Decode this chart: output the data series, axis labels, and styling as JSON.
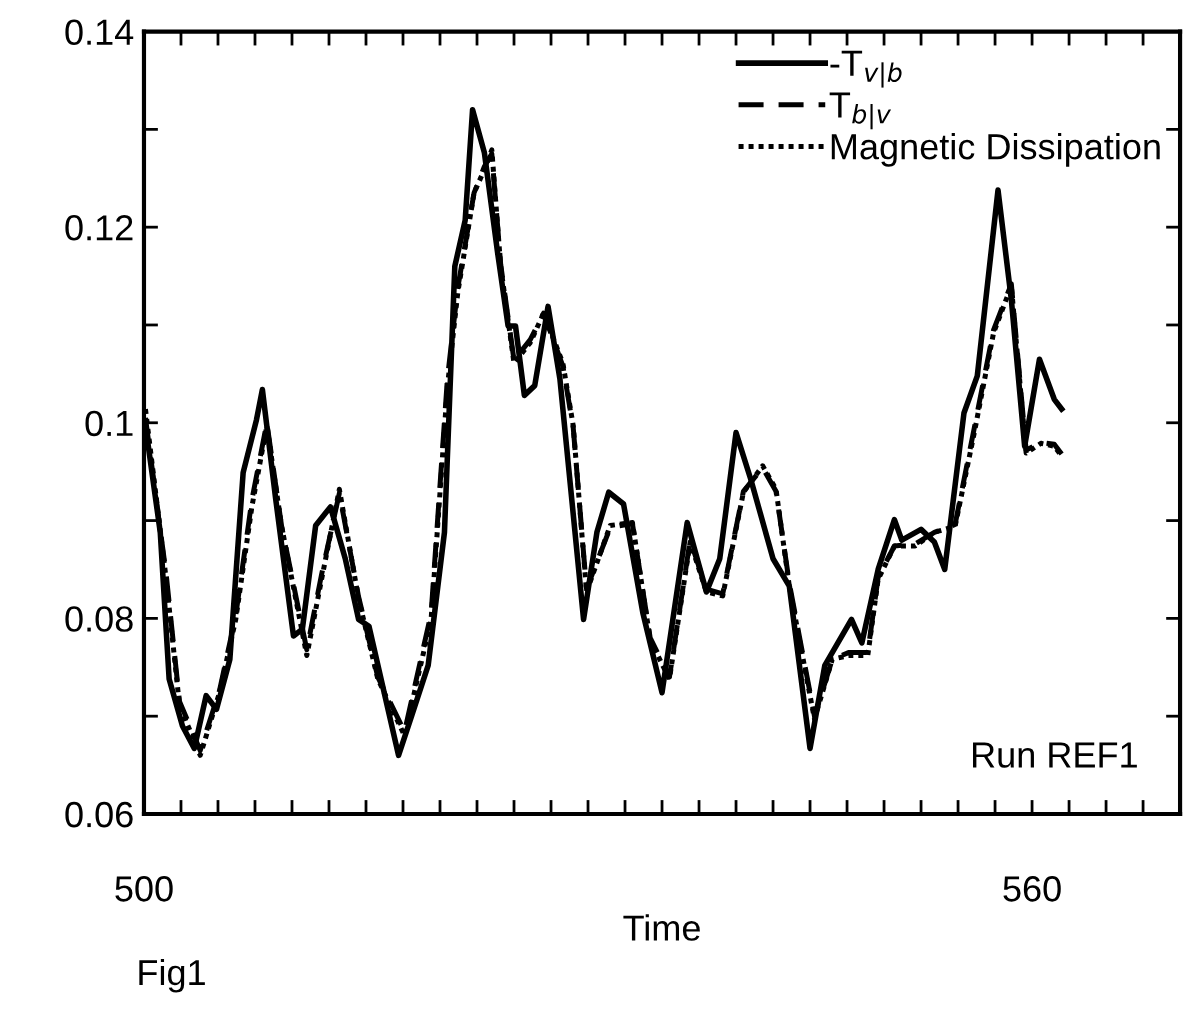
{
  "chart_data": {
    "type": "line",
    "xlabel": "Time",
    "xlim": [
      500,
      570
    ],
    "xticks": [
      500,
      {
        "value": 502.5,
        "label": null
      },
      {
        "value": 505,
        "label": null
      },
      {
        "value": 507.5,
        "label": null
      },
      {
        "value": 510,
        "label": null
      },
      {
        "value": 512.5,
        "label": null
      },
      {
        "value": 515,
        "label": null
      },
      {
        "value": 517.5,
        "label": null
      },
      {
        "value": 520,
        "label": null
      },
      {
        "value": 522.5,
        "label": null
      },
      {
        "value": 525,
        "label": null
      },
      {
        "value": 527.5,
        "label": null
      },
      {
        "value": 530,
        "label": null
      },
      {
        "value": 532.5,
        "label": null
      },
      {
        "value": 535,
        "label": null
      },
      {
        "value": 537.5,
        "label": null
      },
      {
        "value": 540,
        "label": null
      },
      {
        "value": 542.5,
        "label": null
      },
      {
        "value": 545,
        "label": null
      },
      {
        "value": 547.5,
        "label": null
      },
      {
        "value": 550,
        "label": null
      },
      {
        "value": 552.5,
        "label": null
      },
      {
        "value": 555,
        "label": null
      },
      {
        "value": 557.5,
        "label": null
      },
      560,
      {
        "value": 562.5,
        "label": null
      },
      {
        "value": 565,
        "label": null
      },
      {
        "value": 567.5,
        "label": null
      },
      {
        "value": 570,
        "label": null
      }
    ],
    "ylim": [
      0.06,
      0.14
    ],
    "yticks": [
      0.06,
      {
        "value": 0.07,
        "label": null
      },
      0.08,
      {
        "value": 0.09,
        "label": null
      },
      0.1,
      {
        "value": 0.11,
        "label": null
      },
      0.12,
      {
        "value": 0.13,
        "label": null
      },
      0.14
    ],
    "grid": false,
    "legend": "top right",
    "annotations": [
      "Run REF1",
      "Fig1"
    ],
    "series": [
      {
        "name": "-T$_{v|b}$",
        "color": "#000000",
        "line_style": "solid",
        "x": [
          500.1,
          501.1,
          501.7,
          502.6,
          503.4,
          504.2,
          504.9,
          505.8,
          506.7,
          507.6,
          508.0,
          508.9,
          510.1,
          510.7,
          511.6,
          512.6,
          513.6,
          514.5,
          515.2,
          517.2,
          518.1,
          519.2,
          520.3,
          521.0,
          521.7,
          522.2,
          523.0,
          523.9,
          524.6,
          525.1,
          525.7,
          526.4,
          527.3,
          528.1,
          529.7,
          530.6,
          531.4,
          532.4,
          533.7,
          535.0,
          536.7,
          538.0,
          538.9,
          540.0,
          541.0,
          542.5,
          543.6,
          545.0,
          546.0,
          547.8,
          548.5,
          549.6,
          550.7,
          551.2,
          552.5,
          553.4,
          554.1,
          555.4,
          556.3,
          557.7,
          558.6,
          559.5,
          560.5,
          561.5,
          562.0
        ],
        "values": [
          0.0997,
          0.0888,
          0.0738,
          0.069,
          0.0667,
          0.0721,
          0.0707,
          0.0758,
          0.0949,
          0.1003,
          0.1034,
          0.0922,
          0.0782,
          0.0789,
          0.0895,
          0.0914,
          0.0861,
          0.0799,
          0.0792,
          0.066,
          0.0701,
          0.0752,
          0.0888,
          0.116,
          0.1207,
          0.132,
          0.1276,
          0.1173,
          0.1099,
          0.1099,
          0.1028,
          0.1038,
          0.1119,
          0.1045,
          0.0799,
          0.0888,
          0.0929,
          0.0917,
          0.0806,
          0.0724,
          0.0898,
          0.0827,
          0.0861,
          0.099,
          0.0942,
          0.0861,
          0.0833,
          0.0667,
          0.0752,
          0.0799,
          0.0775,
          0.085,
          0.0901,
          0.088,
          0.0891,
          0.0878,
          0.085,
          0.101,
          0.1048,
          0.1238,
          0.1126,
          0.0976,
          0.1065,
          0.1024,
          0.1014
        ]
      },
      {
        "name": "T$_{b|v}$",
        "color": "#000000",
        "line_style": "dashed",
        "x": [
          500.1,
          501.5,
          502.4,
          503.8,
          505.1,
          506.2,
          507.3,
          508.3,
          509.3,
          511.0,
          512.0,
          513.2,
          514.5,
          515.8,
          517.6,
          519.4,
          520.5,
          521.2,
          522.3,
          523.0,
          523.5,
          524.1,
          525.0,
          526.1,
          527.0,
          528.3,
          529.0,
          529.9,
          531.5,
          533.0,
          534.2,
          535.5,
          536.9,
          538.0,
          539.1,
          540.5,
          541.8,
          542.7,
          543.6,
          545.3,
          546.5,
          547.6,
          548.9,
          549.6,
          550.7,
          552.1,
          553.4,
          554.8,
          556.1,
          557.4,
          558.6,
          559.6,
          560.6,
          561.5,
          562.0
        ],
        "values": [
          0.1005,
          0.0845,
          0.0715,
          0.0665,
          0.0726,
          0.0803,
          0.0922,
          0.1,
          0.0894,
          0.0768,
          0.0845,
          0.0928,
          0.0822,
          0.074,
          0.0684,
          0.0805,
          0.1045,
          0.1138,
          0.1235,
          0.1262,
          0.1275,
          0.1162,
          0.1064,
          0.1085,
          0.1112,
          0.1058,
          0.0995,
          0.083,
          0.0893,
          0.0897,
          0.078,
          0.074,
          0.088,
          0.083,
          0.0825,
          0.093,
          0.0954,
          0.093,
          0.0836,
          0.07,
          0.0758,
          0.0765,
          0.0765,
          0.0842,
          0.0874,
          0.0876,
          0.0888,
          0.0896,
          0.0995,
          0.1095,
          0.1142,
          0.0972,
          0.098,
          0.0978,
          0.0968
        ]
      },
      {
        "name": "Magnetic Dissipation",
        "color": "#000000",
        "line_style": "dotted",
        "x": [
          500.1,
          501.5,
          502.4,
          503.8,
          505.1,
          506.2,
          507.3,
          508.3,
          509.3,
          511.0,
          512.0,
          513.2,
          514.5,
          515.8,
          517.6,
          519.4,
          520.5,
          521.2,
          522.3,
          523.0,
          523.5,
          524.1,
          525.0,
          526.1,
          527.0,
          528.3,
          529.0,
          529.9,
          531.5,
          533.0,
          534.2,
          535.5,
          536.9,
          538.0,
          539.1,
          540.5,
          541.8,
          542.7,
          543.6,
          545.3,
          546.5,
          547.6,
          548.9,
          549.6,
          550.7,
          552.1,
          553.4,
          554.8,
          556.1,
          557.4,
          558.6,
          559.6,
          560.6,
          561.5,
          562.0
        ],
        "values": [
          0.1014,
          0.084,
          0.0711,
          0.066,
          0.0724,
          0.0799,
          0.0915,
          0.0997,
          0.0894,
          0.0762,
          0.084,
          0.0932,
          0.082,
          0.0738,
          0.068,
          0.0799,
          0.1037,
          0.1133,
          0.1235,
          0.1259,
          0.1279,
          0.116,
          0.1061,
          0.1082,
          0.1112,
          0.1061,
          0.0997,
          0.0827,
          0.0895,
          0.0898,
          0.0778,
          0.0738,
          0.0878,
          0.0827,
          0.0823,
          0.0929,
          0.0956,
          0.0932,
          0.0833,
          0.0697,
          0.0758,
          0.0762,
          0.0762,
          0.084,
          0.0874,
          0.0874,
          0.0888,
          0.0894,
          0.099,
          0.1092,
          0.114,
          0.0969,
          0.0979,
          0.0976,
          0.0966
        ]
      }
    ]
  }
}
